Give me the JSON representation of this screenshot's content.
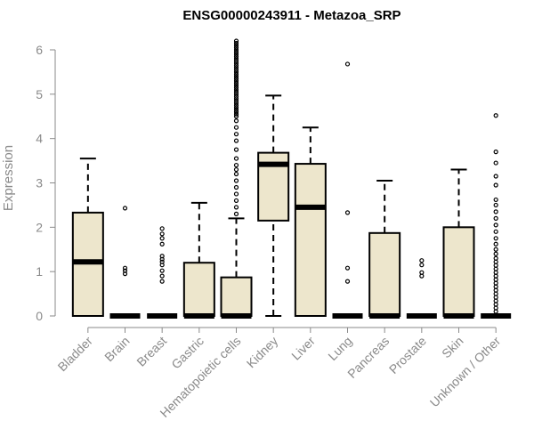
{
  "chart_data": {
    "type": "boxplot",
    "title": "ENSG00000243911 - Metazoa_SRP",
    "xlabel": "",
    "ylabel": "Expression",
    "ylim": [
      0,
      6.2
    ],
    "yticks": [
      "0",
      "1",
      "2",
      "3",
      "4",
      "5",
      "6"
    ],
    "box_color": "#ede6cc",
    "categories": [
      "Bladder",
      "Brain",
      "Breast",
      "Gastric",
      "Hematopoietic cells",
      "Kidney",
      "Liver",
      "Lung",
      "Pancreas",
      "Prostate",
      "Skin",
      "Unknown / Other"
    ],
    "boxes": [
      {
        "name": "Bladder",
        "whisker_low": 0,
        "q1": 0,
        "median": 1.22,
        "q3": 2.33,
        "whisker_high": 3.55,
        "outliers": []
      },
      {
        "name": "Brain",
        "whisker_low": 0,
        "q1": 0,
        "median": 0,
        "q3": 0,
        "whisker_high": 0,
        "outliers": [
          0.95,
          1.02,
          1.08,
          2.43
        ]
      },
      {
        "name": "Breast",
        "whisker_low": 0,
        "q1": 0,
        "median": 0,
        "q3": 0,
        "whisker_high": 0,
        "outliers": [
          0.78,
          0.9,
          1.02,
          1.15,
          1.22,
          1.28,
          1.35,
          1.62,
          1.75,
          1.85,
          1.97
        ]
      },
      {
        "name": "Gastric",
        "whisker_low": 0,
        "q1": 0,
        "median": 0,
        "q3": 1.2,
        "whisker_high": 2.55,
        "outliers": []
      },
      {
        "name": "Hematopoietic cells",
        "whisker_low": 0,
        "q1": 0,
        "median": 0,
        "q3": 0.87,
        "whisker_high": 2.2,
        "outliers": [
          2.3,
          2.45,
          2.6,
          2.75,
          2.9,
          3.05,
          3.2,
          3.3,
          3.4,
          3.55,
          3.75,
          3.95,
          4.1,
          4.25,
          4.4,
          4.5,
          4.55,
          4.6,
          4.65,
          4.7,
          4.75,
          4.8,
          4.85,
          4.9,
          4.95,
          5.0,
          5.05,
          5.1,
          5.15,
          5.2,
          5.25,
          5.3,
          5.35,
          5.4,
          5.45,
          5.5,
          5.55,
          5.6,
          5.65,
          5.7,
          5.75,
          5.8,
          5.85,
          5.9,
          5.95,
          6.0,
          6.05,
          6.1,
          6.15,
          6.2
        ]
      },
      {
        "name": "Kidney",
        "whisker_low": 0,
        "q1": 2.15,
        "median": 3.42,
        "q3": 3.68,
        "whisker_high": 4.97,
        "outliers": []
      },
      {
        "name": "Liver",
        "whisker_low": 0,
        "q1": 0,
        "median": 2.45,
        "q3": 3.43,
        "whisker_high": 4.25,
        "outliers": []
      },
      {
        "name": "Lung",
        "whisker_low": 0,
        "q1": 0,
        "median": 0,
        "q3": 0,
        "whisker_high": 0,
        "outliers": [
          0.78,
          1.08,
          2.33,
          5.68
        ]
      },
      {
        "name": "Pancreas",
        "whisker_low": 0,
        "q1": 0,
        "median": 0,
        "q3": 1.87,
        "whisker_high": 3.05,
        "outliers": []
      },
      {
        "name": "Prostate",
        "whisker_low": 0,
        "q1": 0,
        "median": 0,
        "q3": 0,
        "whisker_high": 0,
        "outliers": [
          0.9,
          0.98,
          1.15,
          1.25
        ]
      },
      {
        "name": "Skin",
        "whisker_low": 0,
        "q1": 0,
        "median": 0,
        "q3": 2.0,
        "whisker_high": 3.3,
        "outliers": []
      },
      {
        "name": "Unknown / Other",
        "whisker_low": 0,
        "q1": 0,
        "median": 0,
        "q3": 0,
        "whisker_high": 0,
        "outliers": [
          0.1,
          0.18,
          0.26,
          0.34,
          0.42,
          0.5,
          0.58,
          0.66,
          0.74,
          0.82,
          0.9,
          0.98,
          1.06,
          1.14,
          1.22,
          1.3,
          1.4,
          1.5,
          1.62,
          1.75,
          1.9,
          2.05,
          2.2,
          2.35,
          2.5,
          2.62,
          2.95,
          3.15,
          3.45,
          3.7,
          4.52
        ]
      }
    ]
  }
}
